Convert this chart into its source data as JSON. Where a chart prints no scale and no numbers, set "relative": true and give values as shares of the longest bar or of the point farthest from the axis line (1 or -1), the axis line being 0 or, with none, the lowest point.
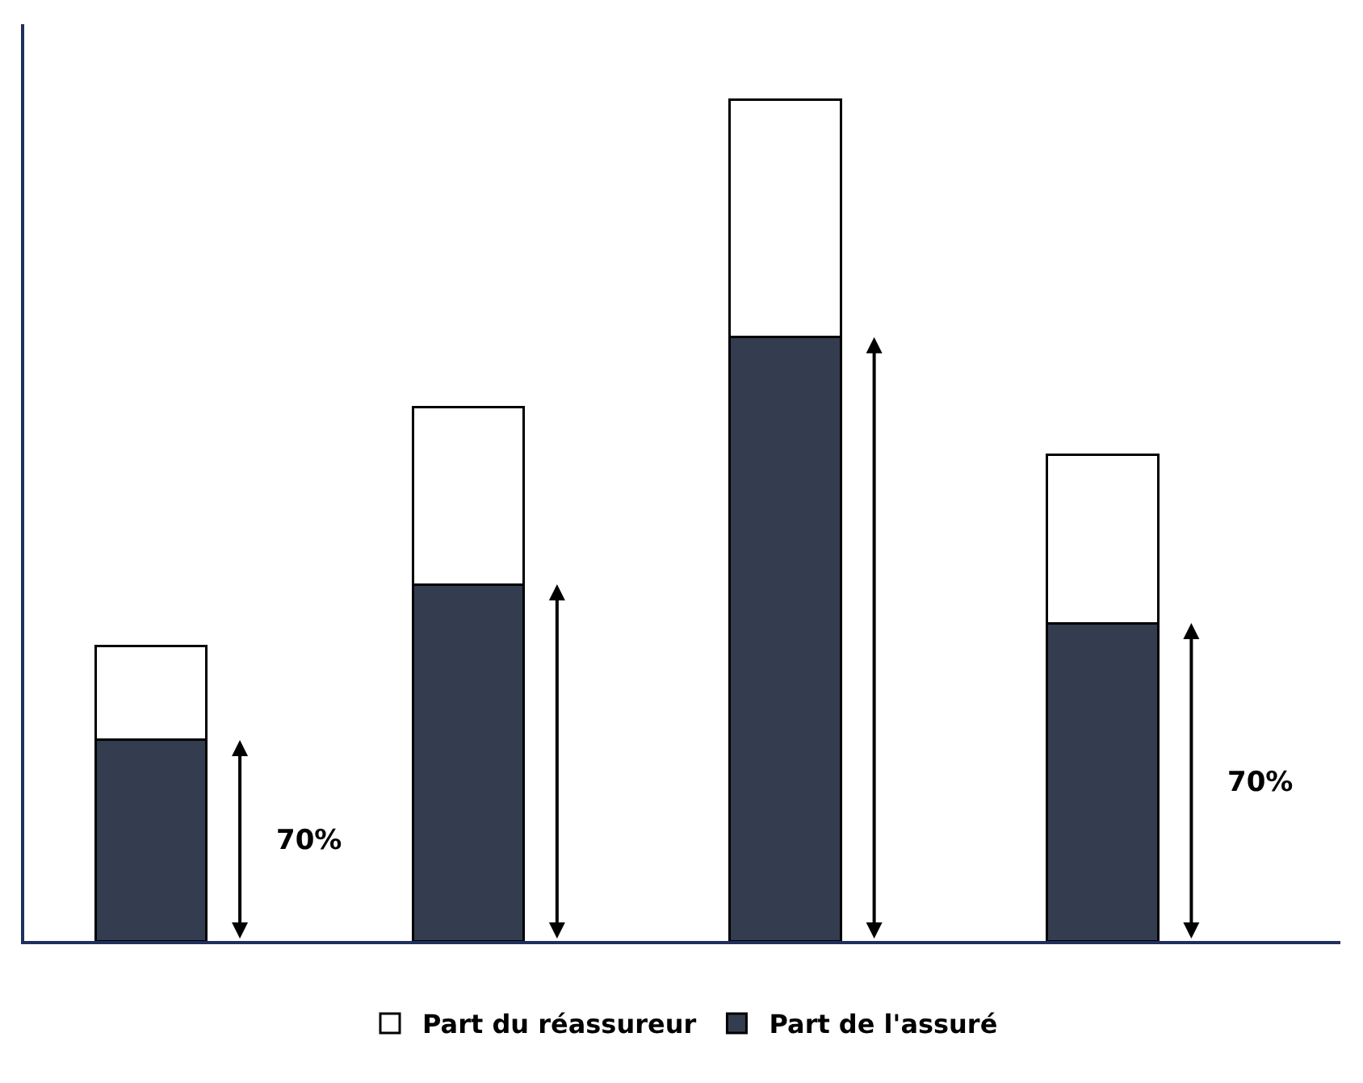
{
  "chart_data": {
    "type": "bar",
    "stacked": true,
    "relative": true,
    "categories": [
      null,
      null,
      null,
      null
    ],
    "series": [
      {
        "name": "Part de l'assuré",
        "color": "#333d4f",
        "values": [
          0.239,
          0.424,
          0.718,
          0.378
        ]
      },
      {
        "name": "Part du réassureur",
        "color": "#ffffff",
        "values": [
          0.112,
          0.211,
          0.282,
          0.2
        ]
      }
    ],
    "annotations": [
      "70%",
      "70%"
    ],
    "legend": "bottom"
  }
}
